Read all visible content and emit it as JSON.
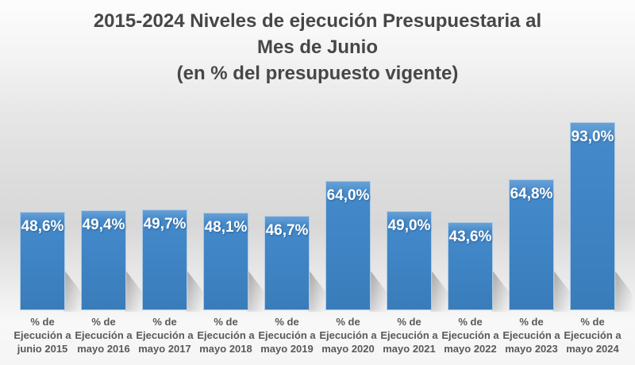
{
  "slide": {
    "title": "2015-2024 Niveles de ejecución Presupuestaria al\nMes de Junio\n(en % del presupuesto vigente)"
  },
  "chart_data": {
    "type": "bar",
    "title": "2015-2024 Niveles de ejecución Presupuestaria al\nMes de Junio\n(en % del presupuesto vigente)",
    "categories": [
      "% de Ejecución a junio 2015",
      "% de Ejecución a mayo 2016",
      "% de Ejecución a mayo 2017",
      "% de Ejecución a mayo 2018",
      "% de Ejecución a mayo 2019",
      "% de Ejecución a mayo 2020",
      "% de Ejecución a mayo 2021",
      "% de Ejecución a mayo 2022",
      "% de Ejecución a mayo 2023",
      "% de Ejecución a mayo 2024"
    ],
    "category_lines": [
      [
        "% de",
        "Ejecución a",
        "junio 2015"
      ],
      [
        "% de",
        "Ejecución a",
        "mayo 2016"
      ],
      [
        "% de",
        "Ejecución a",
        "mayo 2017"
      ],
      [
        "% de",
        "Ejecución a",
        "mayo 2018"
      ],
      [
        "% de",
        "Ejecución a",
        "mayo 2019"
      ],
      [
        "% de",
        "Ejecución a",
        "mayo 2020"
      ],
      [
        "% de",
        "Ejecución a",
        "mayo 2021"
      ],
      [
        "% de",
        "Ejecución a",
        "mayo 2022"
      ],
      [
        "% de",
        "Ejecución a",
        "mayo 2023"
      ],
      [
        "% de",
        "Ejecución a",
        "mayo 2024"
      ]
    ],
    "values": [
      48.6,
      49.4,
      49.7,
      48.1,
      46.7,
      64.0,
      49.0,
      43.6,
      64.8,
      93.0
    ],
    "value_labels": [
      "48,6%",
      "49,4%",
      "49,7%",
      "48,1%",
      "46,7%",
      "64,0%",
      "49,0%",
      "43,6%",
      "64,8%",
      "93,0%"
    ],
    "ylim": [
      0,
      95
    ],
    "xlabel": "",
    "ylabel": "",
    "grid": false,
    "legend": false,
    "data_labels_position": "inside-top",
    "bar_color": "#3e83c3",
    "bar_border_color": "#aecbe5",
    "value_label_color": "#ffffff",
    "category_label_color": "#595959",
    "title_color": "#474747"
  }
}
